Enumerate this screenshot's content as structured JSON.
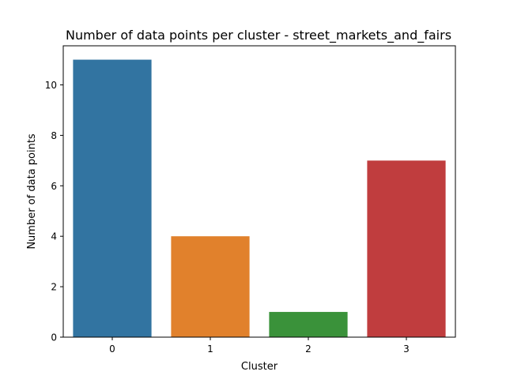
{
  "chart_data": {
    "type": "bar",
    "title": "Number of data points per cluster - street_markets_and_fairs",
    "xlabel": "Cluster",
    "ylabel": "Number of data points",
    "categories": [
      "0",
      "1",
      "2",
      "3"
    ],
    "values": [
      11,
      4,
      1,
      7
    ],
    "colors": [
      "#3274a1",
      "#e1812c",
      "#3a923a",
      "#c03d3e"
    ],
    "ylim": [
      0,
      11.55
    ],
    "yticks": [
      0,
      2,
      4,
      6,
      8,
      10
    ],
    "grid": false,
    "legend": "none"
  }
}
